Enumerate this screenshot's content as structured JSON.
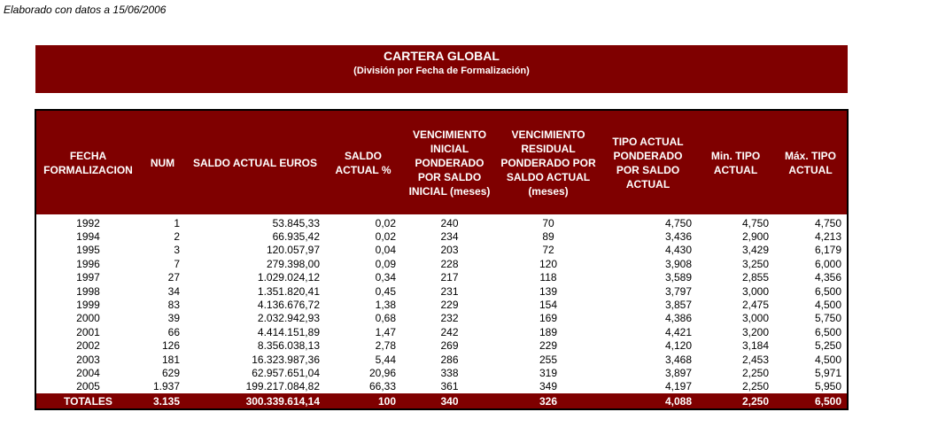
{
  "note": "Elaborado con datos a 15/06/2006",
  "banner": {
    "title": "CARTERA GLOBAL",
    "subtitle": "(División por Fecha de Formalización)"
  },
  "table": {
    "headers": [
      "FECHA FORMALIZACION",
      "NUM",
      "SALDO ACTUAL EUROS",
      "SALDO ACTUAL %",
      "VENCIMIENTO INICIAL PONDERADO POR SALDO INICIAL (meses)",
      "VENCIMIENTO RESIDUAL PONDERADO POR SALDO ACTUAL (meses)",
      "TIPO ACTUAL PONDERADO POR SALDO ACTUAL",
      "Min. TIPO ACTUAL",
      "Máx. TIPO ACTUAL"
    ],
    "rows": [
      [
        "1992",
        "1",
        "53.845,33",
        "0,02",
        "240",
        "70",
        "4,750",
        "4,750",
        "4,750"
      ],
      [
        "1994",
        "2",
        "66.935,42",
        "0,02",
        "234",
        "89",
        "3,436",
        "2,900",
        "4,213"
      ],
      [
        "1995",
        "3",
        "120.057,97",
        "0,04",
        "203",
        "72",
        "4,430",
        "3,429",
        "6,179"
      ],
      [
        "1996",
        "7",
        "279.398,00",
        "0,09",
        "228",
        "120",
        "3,908",
        "3,250",
        "6,000"
      ],
      [
        "1997",
        "27",
        "1.029.024,12",
        "0,34",
        "217",
        "118",
        "3,589",
        "2,855",
        "4,356"
      ],
      [
        "1998",
        "34",
        "1.351.820,41",
        "0,45",
        "231",
        "139",
        "3,797",
        "3,000",
        "6,500"
      ],
      [
        "1999",
        "83",
        "4.136.676,72",
        "1,38",
        "229",
        "154",
        "3,857",
        "2,475",
        "4,500"
      ],
      [
        "2000",
        "39",
        "2.032.942,93",
        "0,68",
        "232",
        "169",
        "4,386",
        "3,000",
        "5,750"
      ],
      [
        "2001",
        "66",
        "4.414.151,89",
        "1,47",
        "242",
        "189",
        "4,421",
        "3,200",
        "6,500"
      ],
      [
        "2002",
        "126",
        "8.356.038,13",
        "2,78",
        "269",
        "229",
        "4,120",
        "3,184",
        "5,250"
      ],
      [
        "2003",
        "181",
        "16.323.987,36",
        "5,44",
        "286",
        "255",
        "3,468",
        "2,453",
        "4,500"
      ],
      [
        "2004",
        "629",
        "62.957.651,04",
        "20,96",
        "338",
        "319",
        "3,897",
        "2,250",
        "5,971"
      ],
      [
        "2005",
        "1.937",
        "199.217.084,82",
        "66,33",
        "361",
        "349",
        "4,197",
        "2,250",
        "5,950"
      ]
    ],
    "totals": [
      "TOTALES",
      "3.135",
      "300.339.614,14",
      "100",
      "340",
      "326",
      "4,088",
      "2,250",
      "6,500"
    ]
  }
}
